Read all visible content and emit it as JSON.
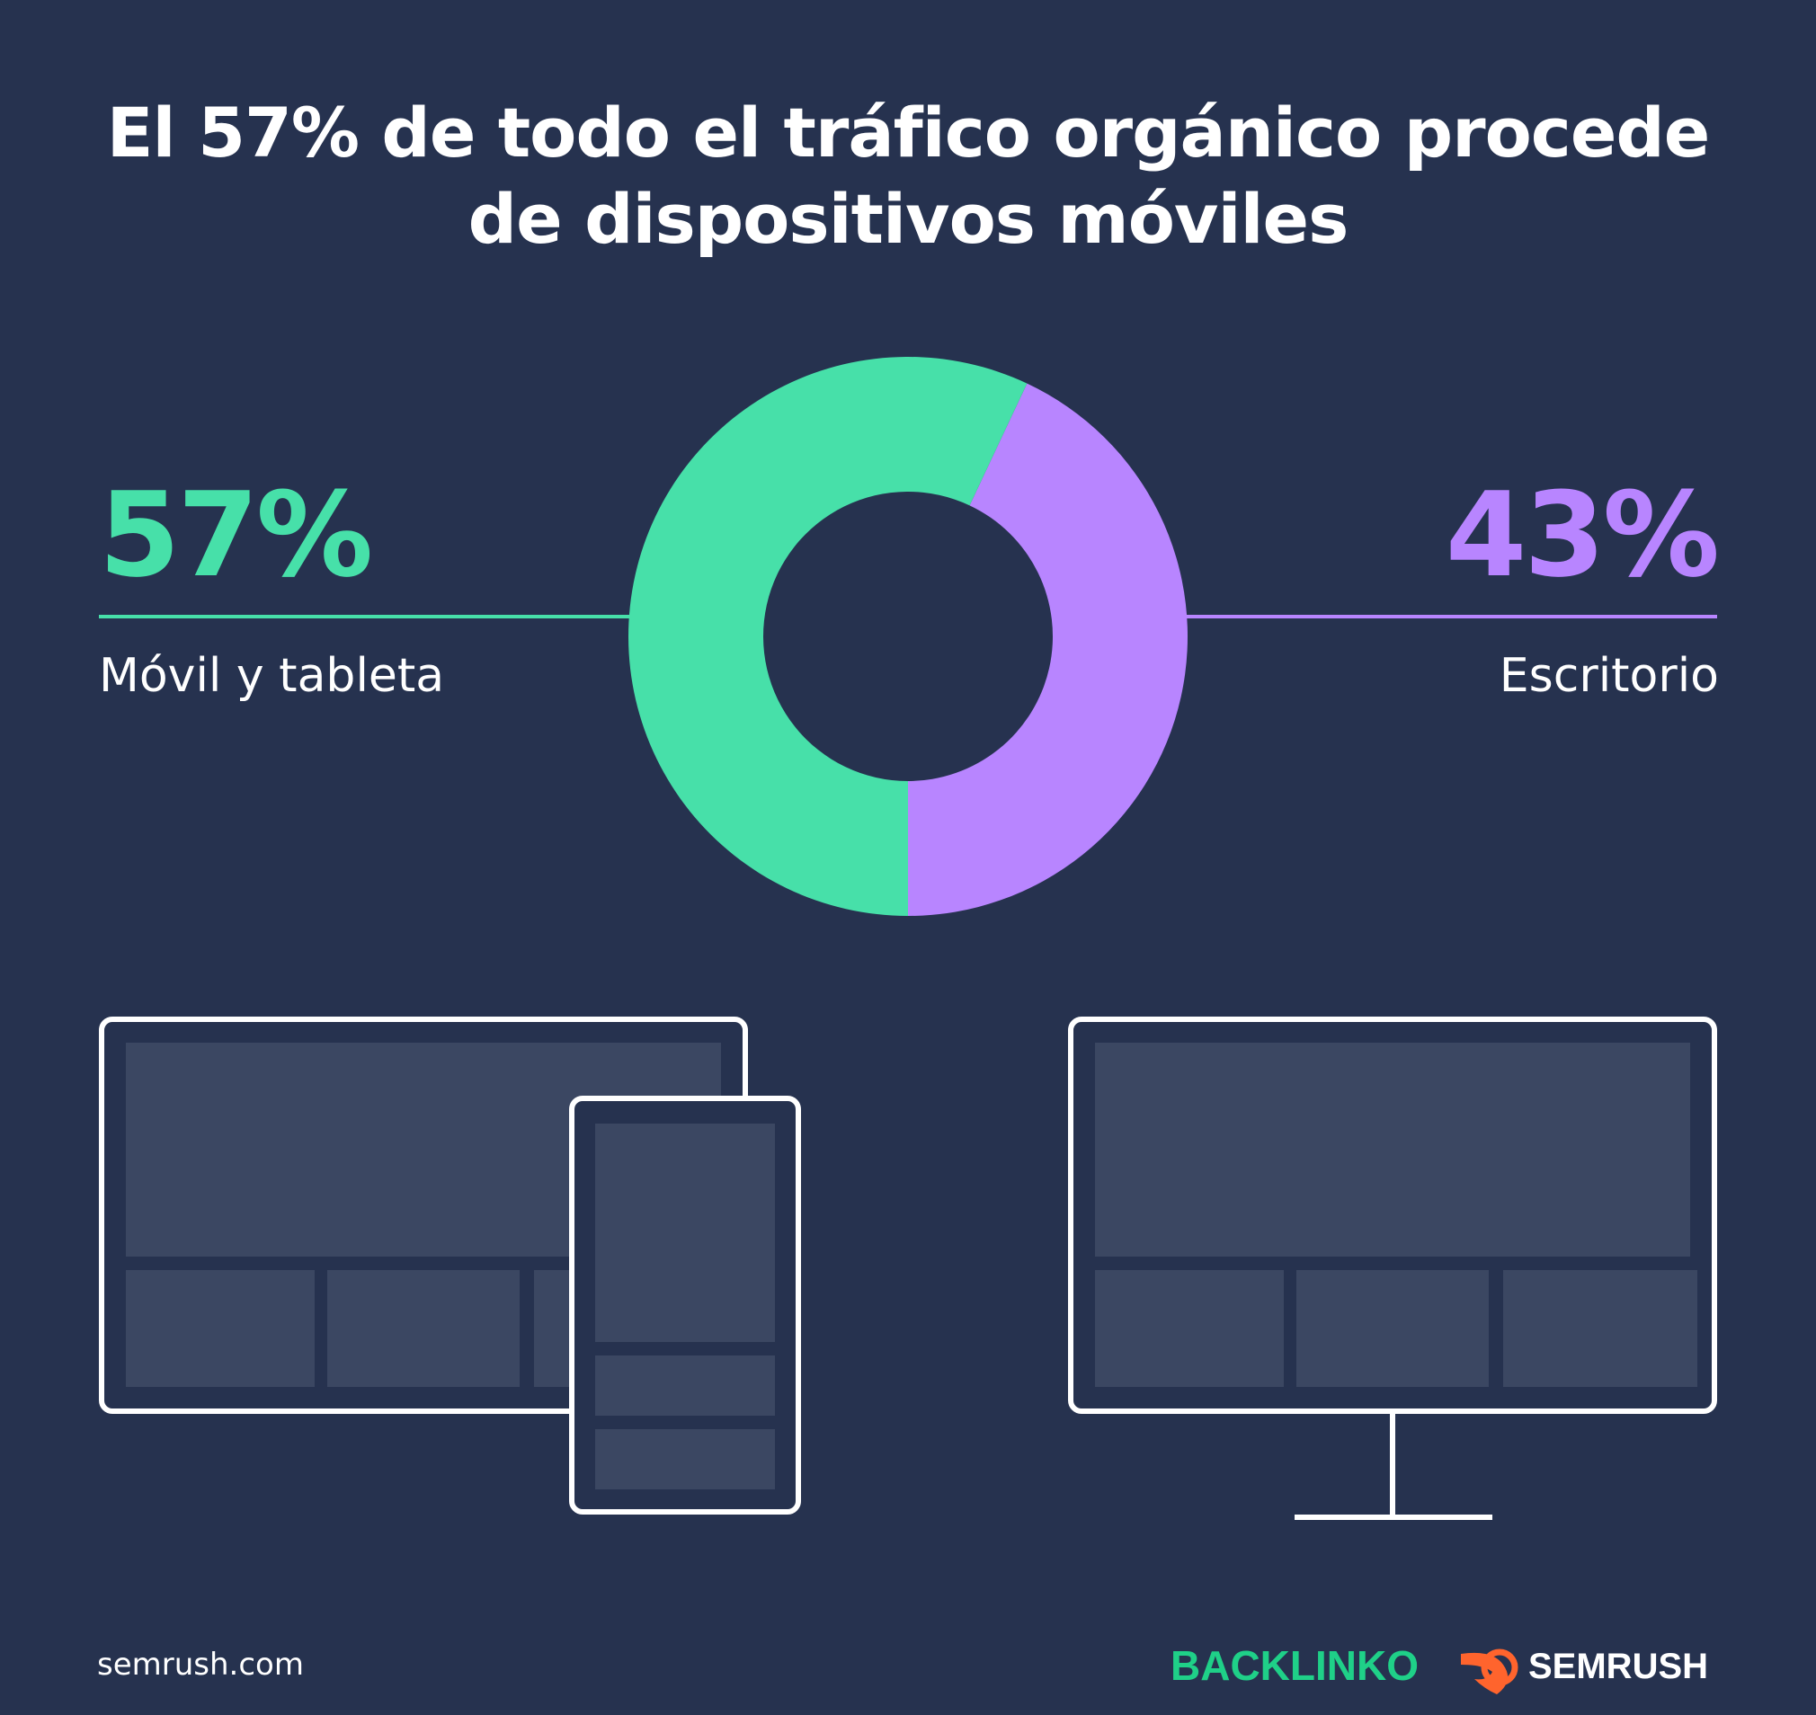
{
  "chart_data": {
    "type": "pie",
    "title": [
      "El 57% de todo el tráfico orgánico procede",
      "de dispositivos móviles"
    ],
    "slices": [
      {
        "label": "Móvil y tableta",
        "value": 57,
        "value_label": "57%",
        "color": "#47e0a9"
      },
      {
        "label": "Escritorio",
        "value": 43,
        "value_label": "43%",
        "color": "#b885ff"
      }
    ],
    "donut": true
  },
  "colors": {
    "background": "#26324f",
    "device_outline": "#ffffff",
    "device_fill": "#3b4762"
  },
  "footer": {
    "url": "semrush.com",
    "logo_backlinko": "BACKLINKO",
    "logo_semrush": "SEMRUSH"
  },
  "icons": {
    "left": "tablet-and-phone-icon",
    "right": "desktop-monitor-icon"
  }
}
